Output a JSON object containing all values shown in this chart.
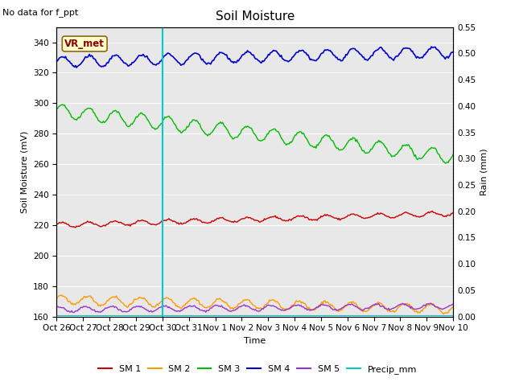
{
  "title": "Soil Moisture",
  "top_left_text": "No data for f_ppt",
  "ylabel_left": "Soil Moisture (mV)",
  "ylabel_right": "Rain (mm)",
  "xlabel": "Time",
  "annotation_label": "VR_met",
  "vline_date_index": 4,
  "ylim_left": [
    160,
    350
  ],
  "ylim_right": [
    0.0,
    0.55
  ],
  "yticks_left": [
    160,
    180,
    200,
    220,
    240,
    260,
    280,
    300,
    320,
    340
  ],
  "yticks_right": [
    0.0,
    0.05,
    0.1,
    0.15,
    0.2,
    0.25,
    0.3,
    0.35,
    0.4,
    0.45,
    0.5,
    0.55
  ],
  "x_tick_labels": [
    "Oct 26",
    "Oct 27",
    "Oct 28",
    "Oct 29",
    "Oct 30",
    "Oct 31",
    "Nov 1",
    "Nov 2",
    "Nov 3",
    "Nov 4",
    "Nov 5",
    "Nov 6",
    "Nov 7",
    "Nov 8",
    "Nov 9",
    "Nov 10"
  ],
  "background_color": "#e8e8e8",
  "grid_color": "#ffffff",
  "sm1_color": "#cc0000",
  "sm2_color": "#ff9900",
  "sm3_color": "#00bb00",
  "sm4_color": "#0000cc",
  "sm5_color": "#9933cc",
  "precip_color": "#00cccc",
  "vline_color": "#00cccc",
  "title_fontsize": 11,
  "label_fontsize": 8,
  "tick_fontsize": 7.5,
  "legend_fontsize": 8
}
